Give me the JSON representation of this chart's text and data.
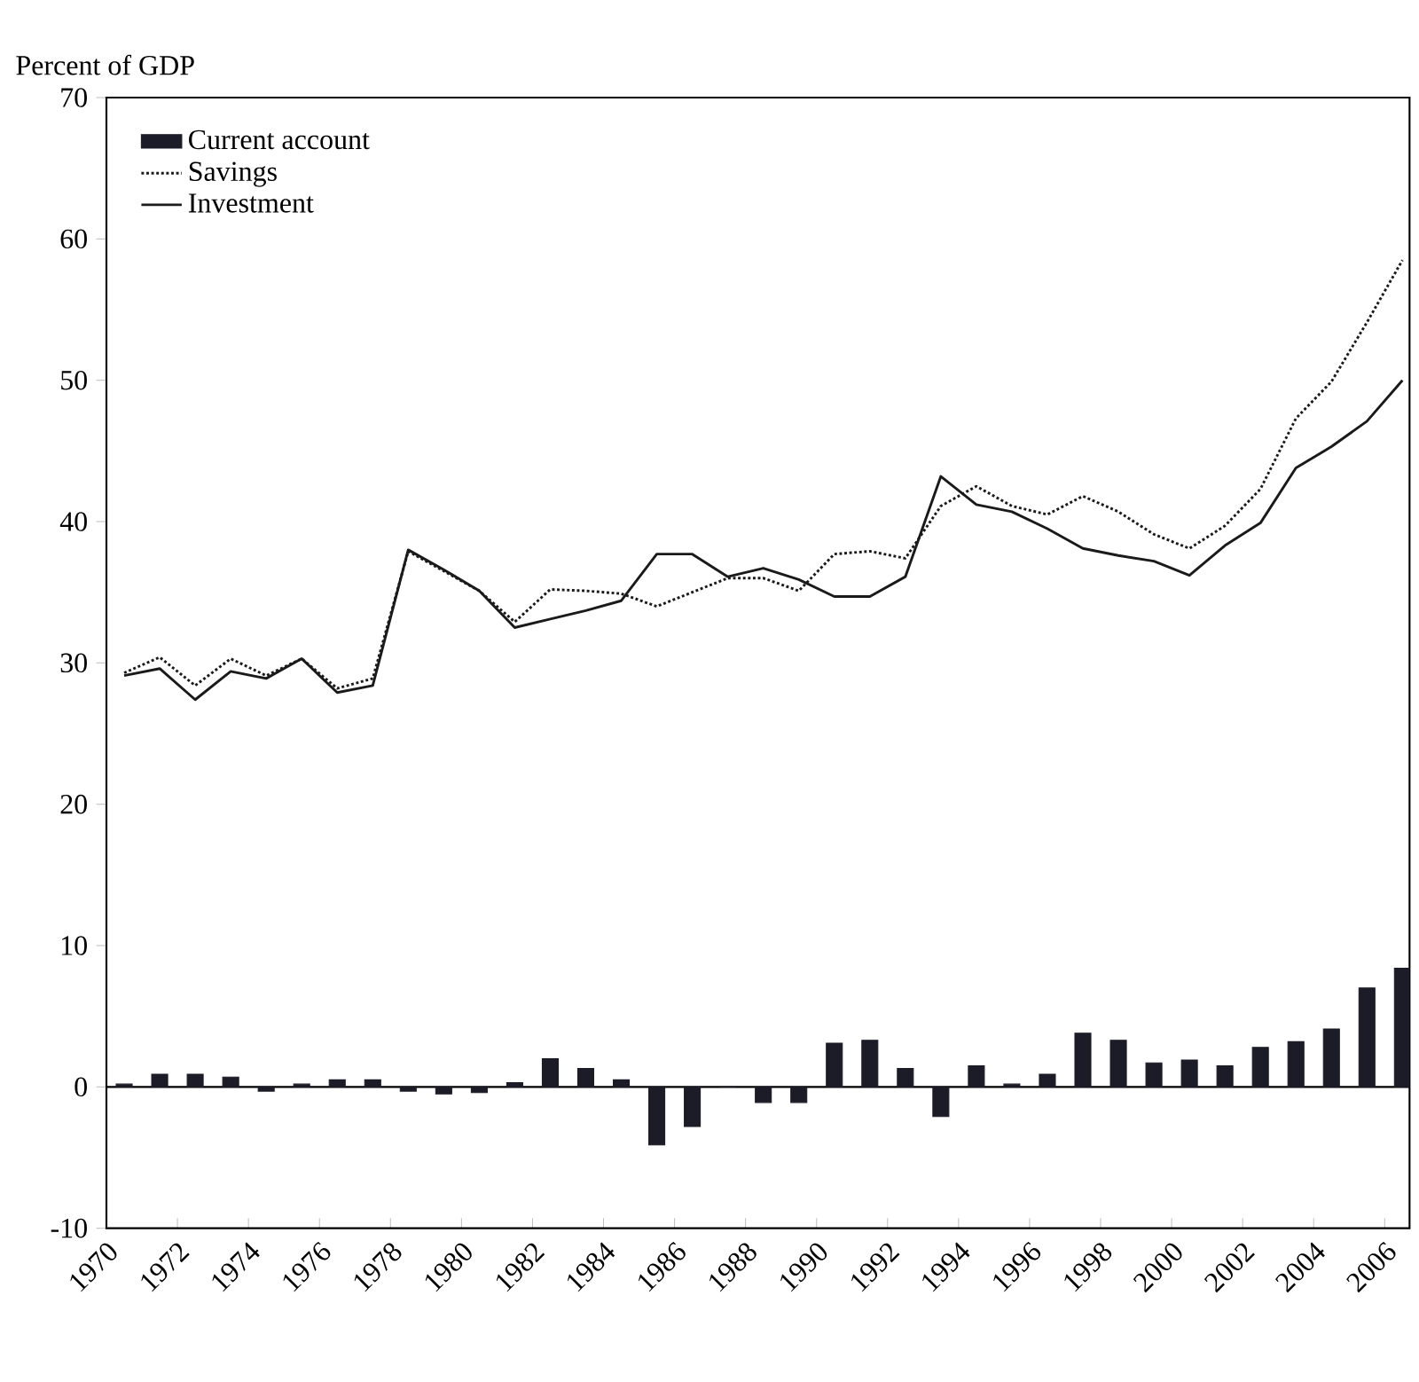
{
  "chart_data": {
    "type": "line",
    "ylabel": "Percent of GDP",
    "x": [
      1970.5,
      1971.5,
      1972.5,
      1973.5,
      1974.5,
      1975.5,
      1976.5,
      1977.5,
      1978.5,
      1979.5,
      1980.5,
      1981.5,
      1982.5,
      1983.5,
      1984.5,
      1985.5,
      1986.5,
      1987.5,
      1988.5,
      1989.5,
      1990.5,
      1991.5,
      1992.5,
      1993.5,
      1994.5,
      1995.5,
      1996.5,
      1997.5,
      1998.5,
      1999.5,
      2000.5,
      2001.5,
      2002.5,
      2003.5,
      2004.5,
      2005.5,
      2006.5
    ],
    "series": [
      {
        "name": "Current account",
        "type": "bar",
        "color": "#1c1c28",
        "values": [
          0.2,
          0.9,
          0.9,
          0.7,
          -0.3,
          0.2,
          0.5,
          0.5,
          -0.3,
          -0.5,
          -0.4,
          0.3,
          2.0,
          1.3,
          0.5,
          -4.1,
          -2.8,
          0,
          -1.1,
          -1.1,
          3.1,
          3.3,
          1.3,
          -2.1,
          1.5,
          0.2,
          0.9,
          3.8,
          3.3,
          1.7,
          1.9,
          1.5,
          2.8,
          3.2,
          4.1,
          7.0,
          8.4
        ]
      },
      {
        "name": "Savings",
        "type": "line",
        "line_style": "dotted",
        "color": "#1a1a1a",
        "values": [
          29.3,
          30.4,
          28.4,
          30.3,
          29.1,
          30.3,
          28.2,
          28.9,
          37.9,
          36.5,
          35.1,
          32.9,
          35.2,
          35.1,
          34.9,
          34.0,
          35.0,
          36.0,
          36.0,
          35.1,
          37.7,
          37.9,
          37.4,
          41.1,
          42.5,
          41.1,
          40.5,
          41.8,
          40.7,
          39.1,
          38.1,
          39.7,
          42.3,
          47.3,
          49.9,
          54.1,
          58.5
        ]
      },
      {
        "name": "Investment",
        "line_style": "solid",
        "color": "#1a1a1a",
        "values": [
          29.1,
          29.6,
          27.4,
          29.4,
          28.9,
          30.3,
          27.9,
          28.4,
          38.0,
          36.6,
          35.1,
          32.5,
          33.1,
          33.7,
          34.4,
          37.7,
          37.7,
          36.1,
          36.7,
          35.9,
          34.7,
          34.7,
          36.1,
          43.2,
          41.2,
          40.7,
          39.5,
          38.1,
          37.6,
          37.2,
          36.2,
          38.3,
          39.9,
          43.8,
          45.3,
          47.1,
          50.0
        ]
      }
    ],
    "xlim": [
      1970,
      2006.7
    ],
    "ylim": [
      -10,
      70
    ],
    "xticks": [
      1970,
      1972,
      1974,
      1976,
      1978,
      1980,
      1982,
      1984,
      1986,
      1988,
      1990,
      1992,
      1994,
      1996,
      1998,
      2000,
      2002,
      2004,
      2006
    ],
    "yticks": [
      -10,
      0,
      10,
      20,
      30,
      40,
      50,
      60,
      70
    ],
    "ref_lines": [
      {
        "axis": "y",
        "value": 0
      }
    ],
    "legend": "top left"
  }
}
